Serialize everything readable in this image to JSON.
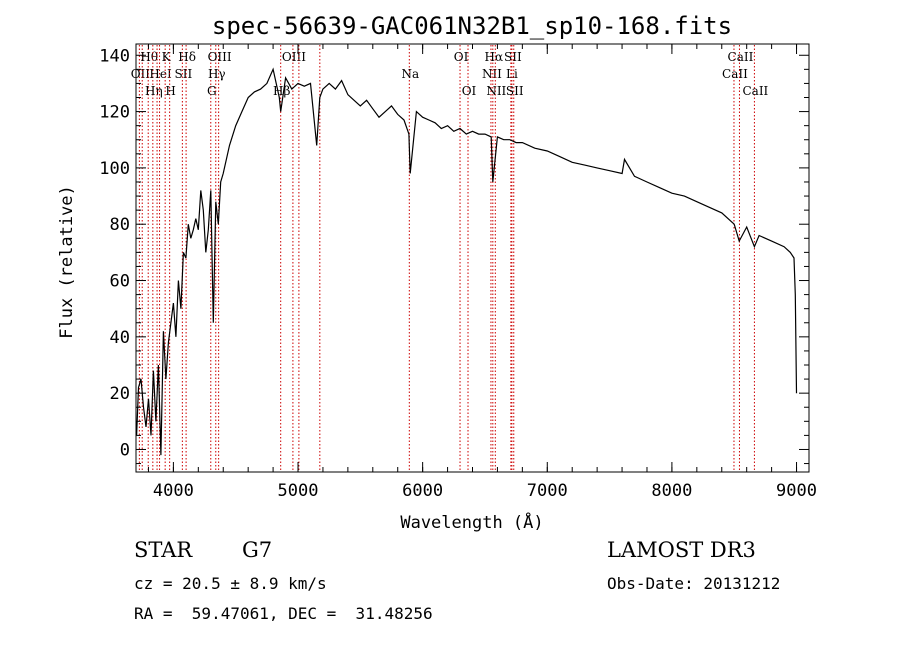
{
  "chart_data": {
    "type": "line",
    "title": "spec-56639-GAC061N32B1_sp10-168.fits",
    "xlabel": "Wavelength (Å)",
    "ylabel": "Flux (relative)",
    "xlim": [
      3700,
      9100
    ],
    "ylim": [
      -8,
      144
    ],
    "xticks": [
      4000,
      5000,
      6000,
      7000,
      8000,
      9000
    ],
    "yticks": [
      0,
      20,
      40,
      60,
      80,
      100,
      120,
      140
    ],
    "grid": false,
    "line_color": "#000000",
    "marker_color": "#cc0000",
    "series": [
      {
        "x": [
          3705,
          3720,
          3740,
          3760,
          3780,
          3800,
          3820,
          3840,
          3860,
          3880,
          3900,
          3920,
          3940,
          3960,
          3980,
          4000,
          4020,
          4040,
          4060,
          4080,
          4100,
          4120,
          4140,
          4160,
          4180,
          4200,
          4220,
          4240,
          4260,
          4280,
          4300,
          4320,
          4340,
          4360,
          4380,
          4400,
          4450,
          4500,
          4550,
          4600,
          4650,
          4700,
          4750,
          4800,
          4850,
          4861,
          4900,
          4950,
          5000,
          5050,
          5100,
          5150,
          5175,
          5200,
          5250,
          5300,
          5350,
          5400,
          5450,
          5500,
          5550,
          5600,
          5650,
          5700,
          5750,
          5800,
          5850,
          5890,
          5900,
          5950,
          6000,
          6050,
          6100,
          6150,
          6200,
          6250,
          6300,
          6350,
          6400,
          6450,
          6500,
          6550,
          6563,
          6600,
          6650,
          6700,
          6750,
          6800,
          6900,
          7000,
          7100,
          7200,
          7300,
          7400,
          7500,
          7600,
          7620,
          7700,
          7800,
          7900,
          8000,
          8100,
          8200,
          8300,
          8400,
          8500,
          8540,
          8600,
          8662,
          8700,
          8800,
          8900,
          8950,
          8980,
          8990,
          9000
        ],
        "y": [
          5,
          22,
          25,
          15,
          8,
          18,
          5,
          28,
          10,
          30,
          -2,
          42,
          25,
          38,
          45,
          52,
          40,
          60,
          50,
          70,
          68,
          80,
          75,
          78,
          82,
          78,
          92,
          85,
          70,
          78,
          92,
          45,
          88,
          80,
          95,
          98,
          108,
          115,
          120,
          125,
          127,
          128,
          130,
          135,
          125,
          120,
          132,
          128,
          130,
          129,
          130,
          108,
          125,
          128,
          130,
          128,
          131,
          126,
          124,
          122,
          124,
          121,
          118,
          120,
          122,
          119,
          117,
          112,
          98,
          120,
          118,
          117,
          116,
          114,
          115,
          113,
          114,
          112,
          113,
          112,
          112,
          111,
          95,
          111,
          110,
          110,
          109,
          109,
          107,
          106,
          104,
          102,
          101,
          100,
          99,
          98,
          103,
          97,
          95,
          93,
          91,
          90,
          88,
          86,
          84,
          80,
          74,
          79,
          72,
          76,
          74,
          72,
          70,
          68,
          55,
          20
        ]
      }
    ],
    "line_markers": [
      {
        "x": 3727,
        "label": "OII",
        "row": 2
      },
      {
        "x": 3750,
        "label": "",
        "row": 0
      },
      {
        "x": 3798,
        "label": "Hθ",
        "row": 1
      },
      {
        "x": 3835,
        "label": "Hη",
        "row": 3
      },
      {
        "x": 3869,
        "label": "",
        "row": 0
      },
      {
        "x": 3889,
        "label": "HeI",
        "row": 2
      },
      {
        "x": 3934,
        "label": "K",
        "row": 1
      },
      {
        "x": 3970,
        "label": "H",
        "row": 3
      },
      {
        "x": 4072,
        "label": "SII",
        "row": 2
      },
      {
        "x": 4102,
        "label": "Hδ",
        "row": 1
      },
      {
        "x": 4300,
        "label": "G",
        "row": 3
      },
      {
        "x": 4340,
        "label": "Hγ",
        "row": 2
      },
      {
        "x": 4363,
        "label": "OIII",
        "row": 1
      },
      {
        "x": 4861,
        "label": "Hβ",
        "row": 3
      },
      {
        "x": 4959,
        "label": "OIII",
        "row": 1
      },
      {
        "x": 5007,
        "label": "",
        "row": 0
      },
      {
        "x": 5175,
        "label": "",
        "row": 0
      },
      {
        "x": 5893,
        "label": "Na",
        "row": 2
      },
      {
        "x": 6300,
        "label": "OI",
        "row": 1
      },
      {
        "x": 6364,
        "label": "OI",
        "row": 3
      },
      {
        "x": 6548,
        "label": "NII",
        "row": 2
      },
      {
        "x": 6563,
        "label": "Hα",
        "row": 1
      },
      {
        "x": 6583,
        "label": "NII",
        "row": 3
      },
      {
        "x": 6708,
        "label": "Li",
        "row": 2
      },
      {
        "x": 6716,
        "label": "SII",
        "row": 1
      },
      {
        "x": 6731,
        "label": "SII",
        "row": 3
      },
      {
        "x": 8498,
        "label": "CaII",
        "row": 2
      },
      {
        "x": 8542,
        "label": "CaII",
        "row": 1
      },
      {
        "x": 8662,
        "label": "CaII",
        "row": 3
      }
    ]
  },
  "info": {
    "class": "STAR",
    "subclass": "G7",
    "cz": "cz = 20.5 ± 8.9 km/s",
    "survey": "LAMOST DR3",
    "obs_date": "Obs-Date: 20131212",
    "radec": "RA =  59.47061, DEC =  31.48256"
  }
}
